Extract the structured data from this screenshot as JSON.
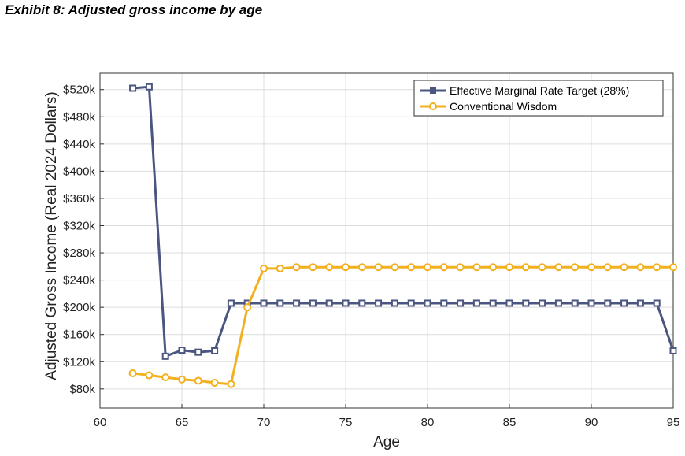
{
  "exhibit": {
    "title": "Exhibit 8: Adjusted gross income by age"
  },
  "chart_data": {
    "type": "line",
    "title": "Exhibit 8: Adjusted gross income by age",
    "xlabel": "Age",
    "ylabel": "Adjusted Gross Income (Real 2024 Dollars)",
    "xlim": [
      60,
      95
    ],
    "ylim": [
      52000,
      544000
    ],
    "xticks": [
      60,
      65,
      70,
      75,
      80,
      85,
      90,
      95
    ],
    "xtick_labels": [
      "60",
      "65",
      "70",
      "75",
      "80",
      "85",
      "90",
      "95"
    ],
    "yticks": [
      80000,
      120000,
      160000,
      200000,
      240000,
      280000,
      320000,
      360000,
      400000,
      440000,
      480000,
      520000
    ],
    "ytick_labels": [
      "$80k",
      "$120k",
      "$160k",
      "$200k",
      "$240k",
      "$280k",
      "$320k",
      "$360k",
      "$400k",
      "$440k",
      "$480k",
      "$520k"
    ],
    "grid": true,
    "legend_position": "top-right",
    "x": [
      62,
      63,
      64,
      65,
      66,
      67,
      68,
      69,
      70,
      71,
      72,
      73,
      74,
      75,
      76,
      77,
      78,
      79,
      80,
      81,
      82,
      83,
      84,
      85,
      86,
      87,
      88,
      89,
      90,
      91,
      92,
      93,
      94,
      95
    ],
    "series": [
      {
        "name": "Effective Marginal Rate Target (28%)",
        "color": "#4a5580",
        "marker": "square",
        "values": [
          522000,
          524000,
          128000,
          137000,
          134000,
          136000,
          206000,
          206000,
          206000,
          206000,
          206000,
          206000,
          206000,
          206000,
          206000,
          206000,
          206000,
          206000,
          206000,
          206000,
          206000,
          206000,
          206000,
          206000,
          206000,
          206000,
          206000,
          206000,
          206000,
          206000,
          206000,
          206000,
          206000,
          136000
        ]
      },
      {
        "name": "Conventional Wisdom",
        "color": "#f2b01e",
        "marker": "circle",
        "values": [
          103000,
          100000,
          97000,
          94000,
          92000,
          89000,
          87000,
          200000,
          257000,
          257000,
          259000,
          259000,
          259000,
          259000,
          259000,
          259000,
          259000,
          259000,
          259000,
          259000,
          259000,
          259000,
          259000,
          259000,
          259000,
          259000,
          259000,
          259000,
          259000,
          259000,
          259000,
          259000,
          259000,
          259000
        ]
      }
    ]
  }
}
